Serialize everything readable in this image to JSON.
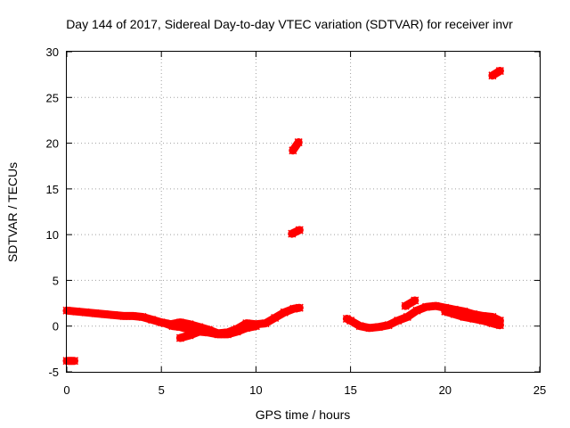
{
  "chart_data": {
    "type": "scatter",
    "title": "Day 144 of 2017, Sidereal Day-to-day VTEC variation (SDTVAR) for receiver invr",
    "xlabel": "GPS time / hours",
    "ylabel": "SDTVAR / TECUs",
    "xlim": [
      0,
      25
    ],
    "ylim": [
      -5,
      30
    ],
    "xticks": [
      0,
      5,
      10,
      15,
      20,
      25
    ],
    "yticks": [
      -5,
      0,
      5,
      10,
      15,
      20,
      25,
      30
    ],
    "xtick_labels": [
      "0",
      "5",
      "10",
      "15",
      "20",
      "25"
    ],
    "ytick_labels": [
      "-5",
      "0",
      "5",
      "10",
      "15",
      "20",
      "25",
      "30"
    ],
    "grid": true,
    "color": "#ff0000",
    "series": [
      {
        "name": "main-track-1",
        "x": [
          0.0,
          0.5,
          1.0,
          1.5,
          2.0,
          2.5,
          3.0,
          3.5,
          4.0,
          4.5,
          5.0,
          5.5,
          6.0,
          6.5,
          7.0,
          7.5,
          8.0,
          8.5,
          9.0,
          9.5,
          10.0,
          10.5,
          11.0,
          11.5,
          12.0,
          12.3
        ],
        "y": [
          1.7,
          1.6,
          1.5,
          1.4,
          1.3,
          1.2,
          1.1,
          1.1,
          1.0,
          0.7,
          0.4,
          0.2,
          0.4,
          0.2,
          -0.1,
          -0.4,
          -0.8,
          -0.7,
          -0.3,
          0.3,
          0.2,
          0.3,
          0.9,
          1.5,
          1.9,
          2.0
        ]
      },
      {
        "name": "main-track-2",
        "x": [
          5.2,
          5.6,
          6.0,
          6.5,
          7.0,
          7.3
        ],
        "y": [
          0.3,
          0.0,
          -0.1,
          -0.4,
          -0.6,
          -0.6
        ]
      },
      {
        "name": "main-track-3",
        "x": [
          6.0,
          6.5,
          7.0,
          7.5,
          8.0,
          8.5,
          9.0,
          9.5,
          10.0
        ],
        "y": [
          -1.3,
          -1.0,
          -0.6,
          -0.7,
          -0.9,
          -0.9,
          -0.6,
          -0.2,
          0.0
        ]
      },
      {
        "name": "main-track-4",
        "x": [
          14.8,
          15.0,
          15.5,
          16.0,
          16.5,
          17.0,
          17.5,
          18.0,
          18.5,
          19.0,
          19.5,
          20.0,
          20.5,
          21.0,
          21.5,
          22.0,
          22.5,
          22.9
        ],
        "y": [
          0.8,
          0.6,
          0.0,
          -0.2,
          -0.1,
          0.1,
          0.6,
          1.0,
          1.7,
          2.1,
          2.2,
          2.0,
          1.8,
          1.6,
          1.3,
          1.1,
          1.0,
          0.6
        ]
      },
      {
        "name": "main-track-5",
        "x": [
          20.0,
          20.5,
          21.0,
          21.5,
          22.0,
          22.5,
          22.9
        ],
        "y": [
          1.6,
          1.3,
          1.0,
          0.8,
          0.6,
          0.3,
          0.1
        ]
      },
      {
        "name": "segment-offset-low",
        "x": [
          0.0,
          0.4
        ],
        "y": [
          -3.8,
          -3.8
        ]
      },
      {
        "name": "segment-18h",
        "x": [
          17.9,
          18.4
        ],
        "y": [
          2.2,
          2.8
        ]
      },
      {
        "name": "segment-10tecu",
        "x": [
          11.9,
          12.3
        ],
        "y": [
          10.1,
          10.5
        ]
      },
      {
        "name": "segment-19tecu",
        "x": [
          11.95,
          12.25
        ],
        "y": [
          19.2,
          20.1
        ]
      },
      {
        "name": "segment-27tecu",
        "x": [
          22.5,
          22.9
        ],
        "y": [
          27.4,
          27.9
        ]
      }
    ]
  }
}
